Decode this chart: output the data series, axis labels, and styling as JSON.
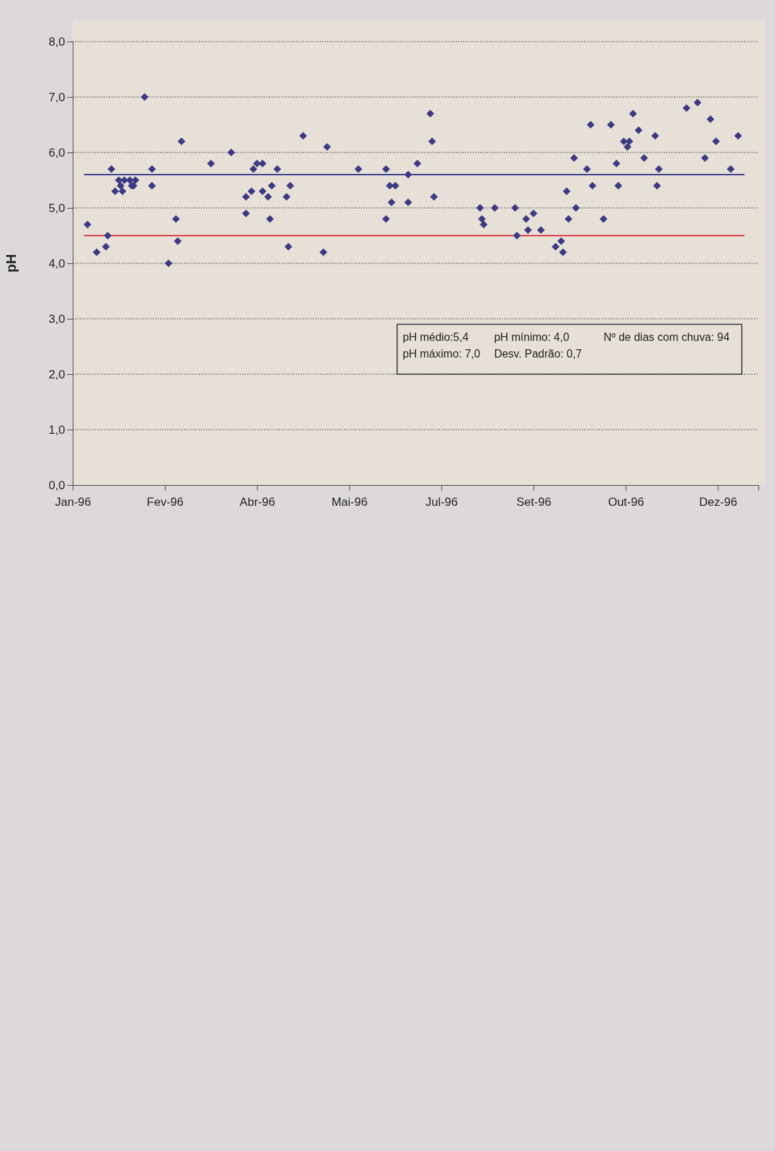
{
  "chart_data": {
    "type": "scatter",
    "ylabel": "pH",
    "marker": "diamond",
    "grid": "y",
    "xlim": [
      "1996-01-01",
      "1997-01-07"
    ],
    "xticks": [
      {
        "value": "1996-01-01",
        "label": "Jan-96"
      },
      {
        "value": "1996-02-20",
        "label": "Fev-96"
      },
      {
        "value": "1996-04-10",
        "label": "Abr-96"
      },
      {
        "value": "1996-05-30",
        "label": "Mai-96"
      },
      {
        "value": "1996-07-19",
        "label": "Jul-96"
      },
      {
        "value": "1996-09-07",
        "label": "Set-96"
      },
      {
        "value": "1996-10-27",
        "label": "Out-96"
      },
      {
        "value": "1996-12-16",
        "label": "Dez-96"
      }
    ],
    "ylim": [
      0,
      8
    ],
    "yticks": [
      {
        "value": 0,
        "label": "0,0"
      },
      {
        "value": 1,
        "label": "1,0"
      },
      {
        "value": 2,
        "label": "2,0"
      },
      {
        "value": 3,
        "label": "3,0"
      },
      {
        "value": 4,
        "label": "4,0"
      },
      {
        "value": 5,
        "label": "5,0"
      },
      {
        "value": 6,
        "label": "6,0"
      },
      {
        "value": 7,
        "label": "7,0"
      },
      {
        "value": 8,
        "label": "8,0"
      }
    ],
    "series": [
      {
        "color": "#3a3a85",
        "x": [
          "1996-01-09",
          "1996-01-14",
          "1996-01-19",
          "1996-01-20",
          "1996-01-22",
          "1996-01-24",
          "1996-01-26",
          "1996-01-27",
          "1996-01-28",
          "1996-01-29",
          "1996-02-01",
          "1996-02-02",
          "1996-02-03",
          "1996-02-04",
          "1996-02-09",
          "1996-02-13",
          "1996-02-13",
          "1996-02-22",
          "1996-02-26",
          "1996-02-27",
          "1996-02-29",
          "1996-03-16",
          "1996-03-27",
          "1996-04-04",
          "1996-04-04",
          "1996-04-07",
          "1996-04-08",
          "1996-04-10",
          "1996-04-13",
          "1996-04-13",
          "1996-04-16",
          "1996-04-17",
          "1996-04-18",
          "1996-04-21",
          "1996-04-26",
          "1996-04-27",
          "1996-04-28",
          "1996-05-05",
          "1996-05-16",
          "1996-05-18",
          "1996-06-04",
          "1996-06-19",
          "1996-06-19",
          "1996-06-21",
          "1996-06-22",
          "1996-06-24",
          "1996-07-01",
          "1996-07-01",
          "1996-07-06",
          "1996-07-13",
          "1996-07-14",
          "1996-07-15",
          "1996-08-09",
          "1996-08-10",
          "1996-08-11",
          "1996-08-17",
          "1996-08-28",
          "1996-08-29",
          "1996-09-04",
          "1996-09-03",
          "1996-09-07",
          "1996-09-11",
          "1996-09-19",
          "1996-09-22",
          "1996-09-23",
          "1996-09-25",
          "1996-09-26",
          "1996-09-29",
          "1996-09-30",
          "1996-10-06",
          "1996-10-08",
          "1996-10-09",
          "1996-10-15",
          "1996-10-19",
          "1996-10-22",
          "1996-10-23",
          "1996-10-26",
          "1996-10-28",
          "1996-10-29",
          "1996-10-31",
          "1996-11-03",
          "1996-11-06",
          "1996-11-12",
          "1996-11-13",
          "1996-11-14",
          "1996-11-29",
          "1996-12-05",
          "1996-12-09",
          "1996-12-12",
          "1996-12-15",
          "1996-12-23",
          "1996-12-27"
        ],
        "values": [
          4.7,
          4.2,
          4.3,
          4.5,
          5.7,
          5.3,
          5.5,
          5.4,
          5.3,
          5.5,
          5.5,
          5.4,
          5.4,
          5.5,
          7.0,
          5.7,
          5.4,
          4.0,
          4.8,
          4.4,
          6.2,
          5.8,
          6.0,
          4.9,
          5.2,
          5.3,
          5.7,
          5.8,
          5.8,
          5.3,
          5.2,
          4.8,
          5.4,
          5.7,
          5.2,
          4.3,
          5.4,
          6.3,
          4.2,
          6.1,
          5.7,
          5.7,
          4.8,
          5.4,
          5.1,
          5.4,
          5.6,
          5.1,
          5.8,
          6.7,
          6.2,
          5.2,
          5.0,
          4.8,
          4.7,
          5.0,
          5.0,
          4.5,
          4.6,
          4.8,
          4.9,
          4.6,
          4.3,
          4.4,
          4.2,
          5.3,
          4.8,
          5.9,
          5.0,
          5.7,
          6.5,
          5.4,
          4.8,
          6.5,
          5.8,
          5.4,
          6.2,
          6.1,
          6.2,
          6.7,
          6.4,
          5.9,
          6.3,
          5.4,
          5.7,
          6.8,
          6.9,
          5.9,
          6.6,
          6.2,
          5.7,
          6.3
        ]
      }
    ],
    "ref_lines": [
      {
        "axis": "y",
        "value": 5.6,
        "color": "#3b3b8f"
      },
      {
        "axis": "y",
        "value": 4.5,
        "color": "#e0404a"
      }
    ],
    "annotations": [
      "pH médio:5,4",
      "pH mínimo: 4,0",
      "Nº de dias com chuva: 94",
      "pH máximo: 7,0",
      "Desv. Padrão: 0,7"
    ]
  }
}
